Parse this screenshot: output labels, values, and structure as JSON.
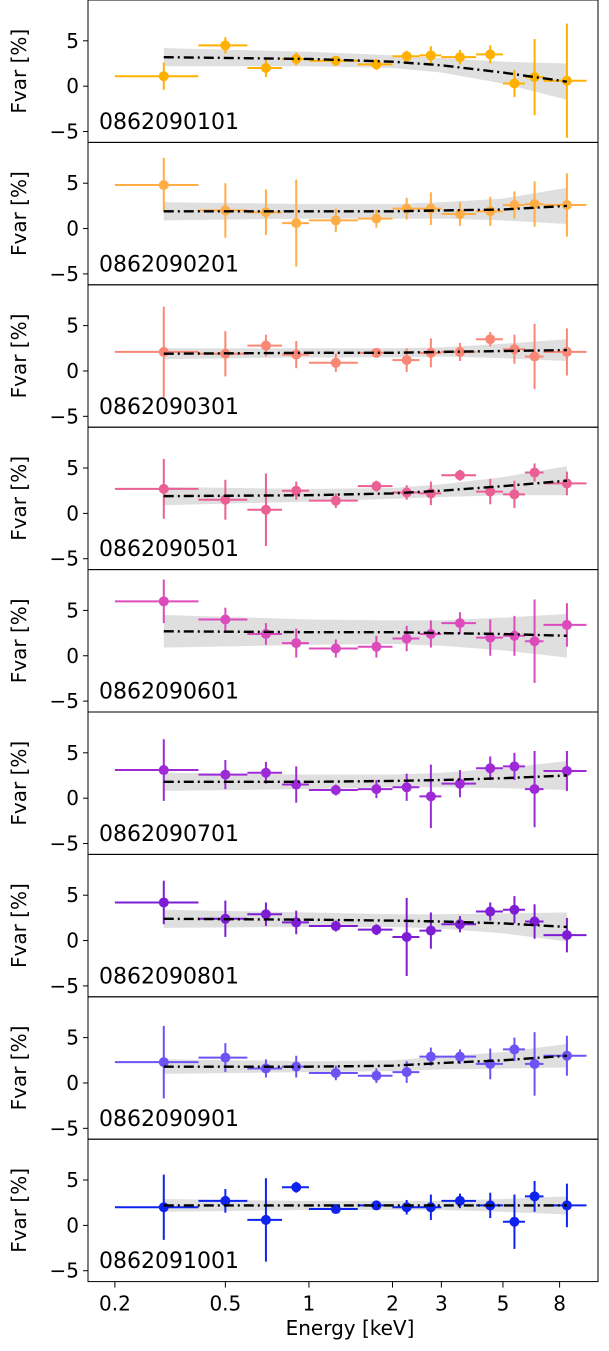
{
  "chart_data": {
    "type": "scatter",
    "xlabel": "Energy [keV]",
    "ylabel": "Fvar [%]",
    "xscale": "log",
    "xlim": [
      0.16,
      11.0
    ],
    "ylim": [
      -6.2,
      9.5
    ],
    "x_ticks": [
      0.2,
      0.5,
      1,
      2,
      3,
      5,
      8
    ],
    "x_tick_labels": [
      "0.2",
      "0.5",
      "1",
      "2",
      "3",
      "5",
      "8"
    ],
    "y_ticks": [
      -5,
      0,
      5
    ],
    "y_tick_labels": [
      "−5",
      "0",
      "5"
    ],
    "grid": false,
    "energy_bins": [
      {
        "x": 0.3,
        "lo": 0.2,
        "hi": 0.4
      },
      {
        "x": 0.5,
        "lo": 0.4,
        "hi": 0.6
      },
      {
        "x": 0.7,
        "lo": 0.6,
        "hi": 0.8
      },
      {
        "x": 0.9,
        "lo": 0.8,
        "hi": 1.0
      },
      {
        "x": 1.25,
        "lo": 1.0,
        "hi": 1.5
      },
      {
        "x": 1.75,
        "lo": 1.5,
        "hi": 2.0
      },
      {
        "x": 2.25,
        "lo": 2.0,
        "hi": 2.5
      },
      {
        "x": 2.75,
        "lo": 2.5,
        "hi": 3.0
      },
      {
        "x": 3.5,
        "lo": 3.0,
        "hi": 4.0
      },
      {
        "x": 4.5,
        "lo": 4.0,
        "hi": 5.0
      },
      {
        "x": 5.5,
        "lo": 5.0,
        "hi": 6.0
      },
      {
        "x": 6.5,
        "lo": 6.0,
        "hi": 7.0
      },
      {
        "x": 8.5,
        "lo": 7.0,
        "hi": 10.0
      }
    ],
    "panels": [
      {
        "obsid": "0862090101",
        "color": "#ffb000",
        "fvar": [
          1.1,
          4.5,
          2.0,
          3.0,
          2.8,
          2.4,
          3.3,
          3.4,
          3.2,
          3.5,
          0.3,
          1.0,
          0.6
        ],
        "err": [
          1.5,
          0.9,
          1.0,
          0.7,
          0.5,
          0.6,
          0.6,
          1.0,
          0.8,
          1.0,
          1.5,
          4.2,
          6.3
        ],
        "model_x": [
          0.3,
          1,
          2,
          3,
          5,
          8.5
        ],
        "model_y": [
          3.2,
          3.0,
          2.7,
          2.3,
          1.5,
          0.5
        ],
        "band": [
          1.0,
          0.8,
          0.7,
          0.8,
          1.2,
          2.0
        ]
      },
      {
        "obsid": "0862090201",
        "color": "#ffad47",
        "fvar": [
          4.8,
          2.0,
          1.8,
          0.6,
          0.9,
          1.1,
          2.2,
          2.2,
          1.6,
          1.9,
          2.6,
          2.7,
          2.6
        ],
        "err": [
          3.0,
          3.0,
          2.5,
          4.8,
          1.3,
          1.0,
          1.2,
          1.8,
          1.3,
          1.6,
          1.5,
          2.5,
          3.5
        ],
        "model_x": [
          0.3,
          1,
          2,
          3,
          5,
          8.5
        ],
        "model_y": [
          1.9,
          1.9,
          1.9,
          2.0,
          2.1,
          2.5
        ],
        "band": [
          1.0,
          0.8,
          0.8,
          0.9,
          1.2,
          2.0
        ]
      },
      {
        "obsid": "0862090301",
        "color": "#fa8775",
        "fvar": [
          2.1,
          1.9,
          2.8,
          1.8,
          0.9,
          2.0,
          1.2,
          2.0,
          2.1,
          3.5,
          2.4,
          1.6,
          2.1
        ],
        "err": [
          5.0,
          2.5,
          1.2,
          1.5,
          1.0,
          0.5,
          1.3,
          1.6,
          1.0,
          0.8,
          1.6,
          3.6,
          2.6
        ],
        "model_x": [
          0.3,
          1,
          2,
          3,
          5,
          8.5
        ],
        "model_y": [
          1.9,
          2.0,
          2.0,
          2.1,
          2.2,
          2.3
        ],
        "band": [
          0.6,
          0.5,
          0.5,
          0.5,
          0.8,
          1.2
        ]
      },
      {
        "obsid": "0862090501",
        "color": "#ea5f94",
        "fvar": [
          2.7,
          1.5,
          0.4,
          2.5,
          1.4,
          3.0,
          2.3,
          2.2,
          4.2,
          2.4,
          2.1,
          4.5,
          3.3
        ],
        "err": [
          3.3,
          2.2,
          4.0,
          1.0,
          0.8,
          0.6,
          0.8,
          1.3,
          0.6,
          1.4,
          1.5,
          1.0,
          1.3
        ],
        "model_x": [
          0.3,
          1,
          2,
          3,
          5,
          8.5
        ],
        "model_y": [
          1.9,
          2.0,
          2.2,
          2.5,
          3.0,
          3.6
        ],
        "band": [
          1.0,
          0.7,
          0.6,
          0.7,
          1.0,
          1.6
        ]
      },
      {
        "obsid": "0862090601",
        "color": "#dc4bbc",
        "fvar": [
          6.0,
          4.0,
          2.4,
          1.4,
          0.8,
          1.0,
          1.9,
          2.4,
          3.6,
          2.0,
          2.2,
          1.6,
          3.4
        ],
        "err": [
          2.4,
          1.3,
          1.2,
          1.6,
          1.0,
          1.2,
          1.4,
          1.5,
          1.2,
          2.0,
          2.2,
          4.6,
          2.4
        ],
        "model_x": [
          0.3,
          1,
          2,
          3,
          5,
          8.5
        ],
        "model_y": [
          2.7,
          2.6,
          2.6,
          2.5,
          2.4,
          2.2
        ],
        "band": [
          1.8,
          1.4,
          1.3,
          1.4,
          1.8,
          2.4
        ]
      },
      {
        "obsid": "0862090701",
        "color": "#9d2ad6",
        "fvar": [
          3.1,
          2.6,
          2.8,
          1.5,
          0.9,
          1.0,
          1.2,
          0.2,
          1.6,
          3.3,
          3.5,
          1.0,
          3.0
        ],
        "err": [
          3.4,
          1.6,
          1.2,
          2.0,
          0.6,
          1.0,
          1.5,
          3.5,
          1.5,
          1.3,
          1.5,
          4.2,
          2.2
        ],
        "model_x": [
          0.3,
          1,
          2,
          3,
          5,
          8.5
        ],
        "model_y": [
          1.8,
          1.8,
          1.9,
          2.0,
          2.2,
          2.5
        ],
        "band": [
          1.0,
          0.8,
          0.7,
          0.8,
          1.1,
          1.6
        ]
      },
      {
        "obsid": "0862090801",
        "color": "#7e1dd4",
        "fvar": [
          4.2,
          2.4,
          2.9,
          2.0,
          1.6,
          1.2,
          0.4,
          1.1,
          1.8,
          3.2,
          3.4,
          2.1,
          0.6
        ],
        "err": [
          2.4,
          2.0,
          1.3,
          1.3,
          0.6,
          0.6,
          4.3,
          2.0,
          0.9,
          1.0,
          1.5,
          1.9,
          1.9
        ],
        "model_x": [
          0.3,
          1,
          2,
          3,
          5,
          8.5
        ],
        "model_y": [
          2.4,
          2.3,
          2.2,
          2.1,
          1.9,
          1.5
        ],
        "band": [
          1.0,
          0.8,
          0.7,
          0.8,
          1.1,
          1.6
        ]
      },
      {
        "obsid": "0862090901",
        "color": "#6e52f5",
        "fvar": [
          2.3,
          2.8,
          1.6,
          1.8,
          1.1,
          0.8,
          1.2,
          2.9,
          2.9,
          2.1,
          3.7,
          2.1,
          3.0
        ],
        "err": [
          4.0,
          1.6,
          1.0,
          1.2,
          0.8,
          0.8,
          1.2,
          1.0,
          0.8,
          1.7,
          1.3,
          3.5,
          2.2
        ],
        "model_x": [
          0.3,
          1,
          2,
          3,
          5,
          8.5
        ],
        "model_y": [
          1.8,
          1.8,
          1.9,
          2.2,
          2.5,
          3.0
        ],
        "band": [
          0.8,
          0.6,
          0.6,
          0.7,
          0.9,
          1.3
        ]
      },
      {
        "obsid": "0862091001",
        "color": "#0f23ee",
        "fvar": [
          2.0,
          2.7,
          0.6,
          4.2,
          1.8,
          2.2,
          2.0,
          2.0,
          2.7,
          2.2,
          0.4,
          3.2,
          2.2
        ],
        "err": [
          3.6,
          1.3,
          4.6,
          0.6,
          0.4,
          0.4,
          0.8,
          1.4,
          0.8,
          1.4,
          3.0,
          1.7,
          2.4
        ],
        "model_x": [
          0.3,
          1,
          2,
          3,
          5,
          8.5
        ],
        "model_y": [
          2.2,
          2.2,
          2.2,
          2.2,
          2.2,
          2.2
        ],
        "band": [
          0.7,
          0.5,
          0.5,
          0.5,
          0.7,
          1.0
        ]
      }
    ]
  }
}
